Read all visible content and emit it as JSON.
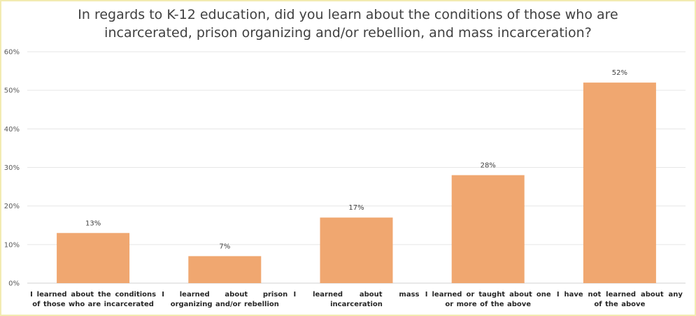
{
  "chart_data": {
    "type": "bar",
    "title_lines": [
      "In regards to K-12 education, did you learn about the conditions of those who are",
      "incarcerated, prison organizing and/or rebellion, and mass incarceration?"
    ],
    "categories": [
      "I learned about the conditions of those who are incarcerated",
      "I learned about prison organizing and/or rebellion",
      "I learned about mass incarceration",
      "I learned or taught about one or more of the above",
      "I have not learned about any of the above"
    ],
    "values": [
      13,
      7,
      17,
      28,
      52
    ],
    "data_labels": [
      "13%",
      "7%",
      "17%",
      "28%",
      "52%"
    ],
    "y_ticks": [
      "0%",
      "10%",
      "20%",
      "30%",
      "40%",
      "50%",
      "60%"
    ],
    "ylim": [
      0,
      60
    ],
    "grid": true,
    "legend": "none",
    "bar_color": "#f0a770"
  }
}
